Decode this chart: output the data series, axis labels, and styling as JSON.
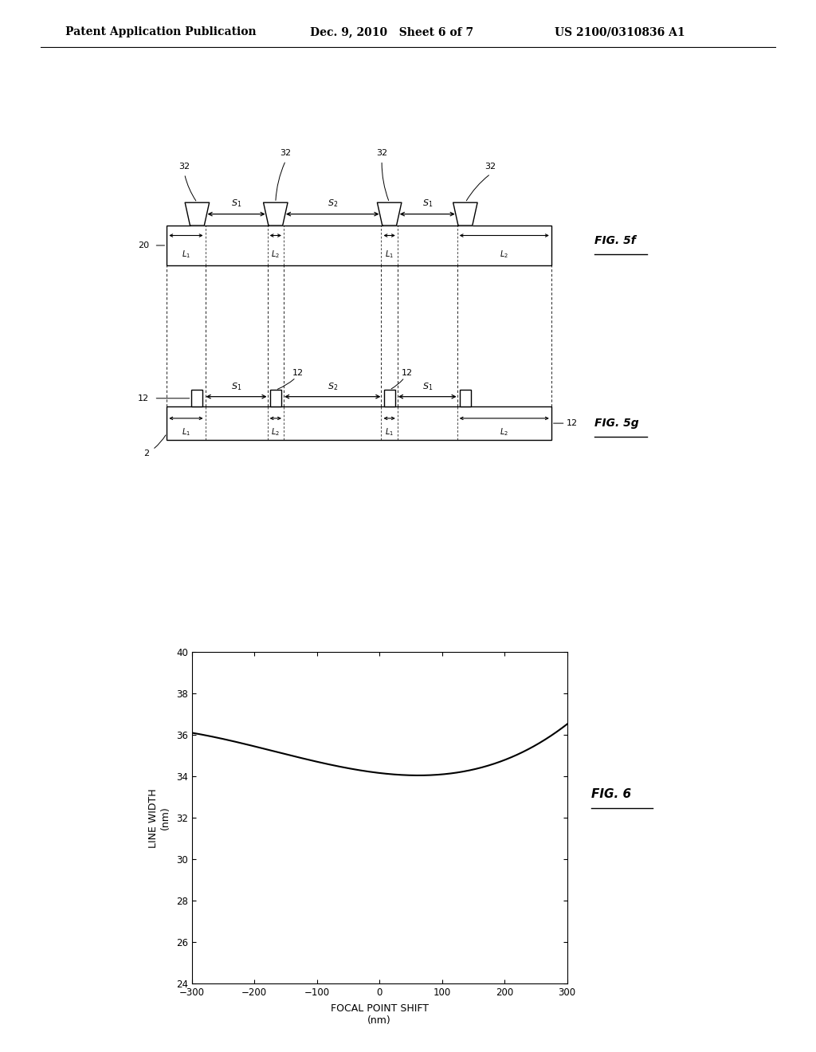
{
  "header_left": "Patent Application Publication",
  "header_mid": "Dec. 9, 2010   Sheet 6 of 7",
  "header_right": "US 2100/0310836 A1",
  "bg_color": "#ffffff",
  "fig5f_label": "FIG. 5f",
  "fig5g_label": "FIG. 5g",
  "fig6_label": "FIG. 6",
  "graph_xlabel": "FOCAL POINT SHIFT\n(nm)",
  "graph_ylabel": "LINE WIDTH\n(nm)",
  "graph_xlim": [
    -300,
    300
  ],
  "graph_ylim": [
    24,
    40
  ],
  "graph_xticks": [
    -300,
    -200,
    -100,
    0,
    100,
    200,
    300
  ],
  "graph_yticks": [
    24,
    26,
    28,
    30,
    32,
    34,
    36,
    38,
    40
  ]
}
